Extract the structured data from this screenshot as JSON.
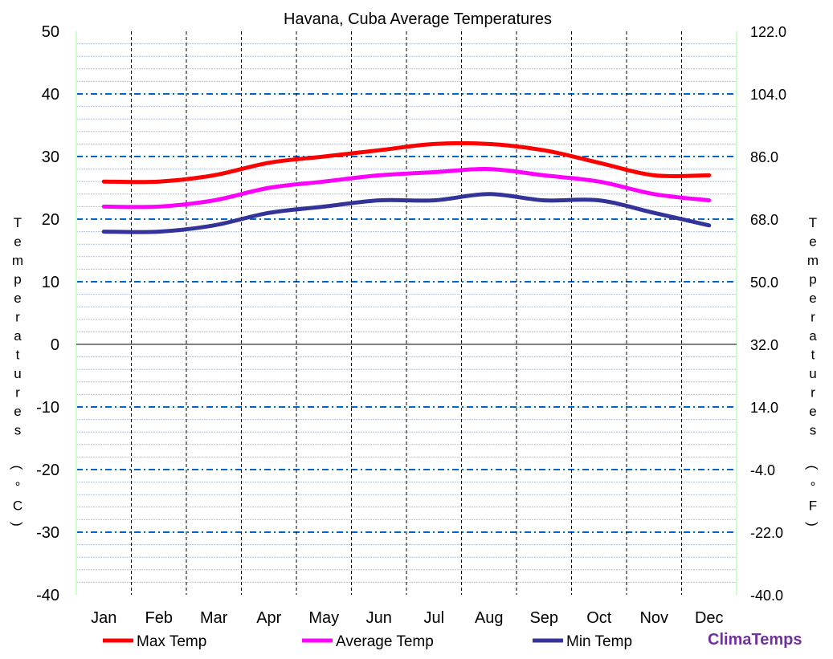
{
  "chart_data": {
    "type": "line",
    "title": "Havana, Cuba Average Temperatures",
    "ylabel": "Temperatures (°C)",
    "ylabel_right": "Temperatures (°F)",
    "categories": [
      "Jan",
      "Feb",
      "Mar",
      "Apr",
      "May",
      "Jun",
      "Jul",
      "Aug",
      "Sep",
      "Oct",
      "Nov",
      "Dec"
    ],
    "ylim": [
      -40,
      50
    ],
    "yticks": [
      "50",
      "40",
      "30",
      "20",
      "10",
      "0",
      "-10",
      "-20",
      "-30",
      "-40"
    ],
    "yticks_right": [
      "122.0",
      "104.0",
      "86.0",
      "68.0",
      "50.0",
      "32.0",
      "14.0",
      "-4.0",
      "-22.0",
      "-40.0"
    ],
    "series": [
      {
        "name": "Max Temp",
        "color": "#ff0000",
        "values": [
          26,
          26,
          27,
          29,
          30,
          31,
          32,
          32,
          31,
          29,
          27,
          27
        ]
      },
      {
        "name": "Average Temp",
        "color": "#ff00ff",
        "values": [
          22,
          22,
          23,
          25,
          26,
          27,
          27.5,
          28,
          27,
          26,
          24,
          23
        ]
      },
      {
        "name": "Min Temp",
        "color": "#333399",
        "values": [
          18,
          18,
          19,
          21,
          22,
          23,
          23,
          24,
          23,
          23,
          21,
          19
        ]
      }
    ],
    "grid": true,
    "legend": "bottom"
  },
  "brand": "ClimaTemps"
}
